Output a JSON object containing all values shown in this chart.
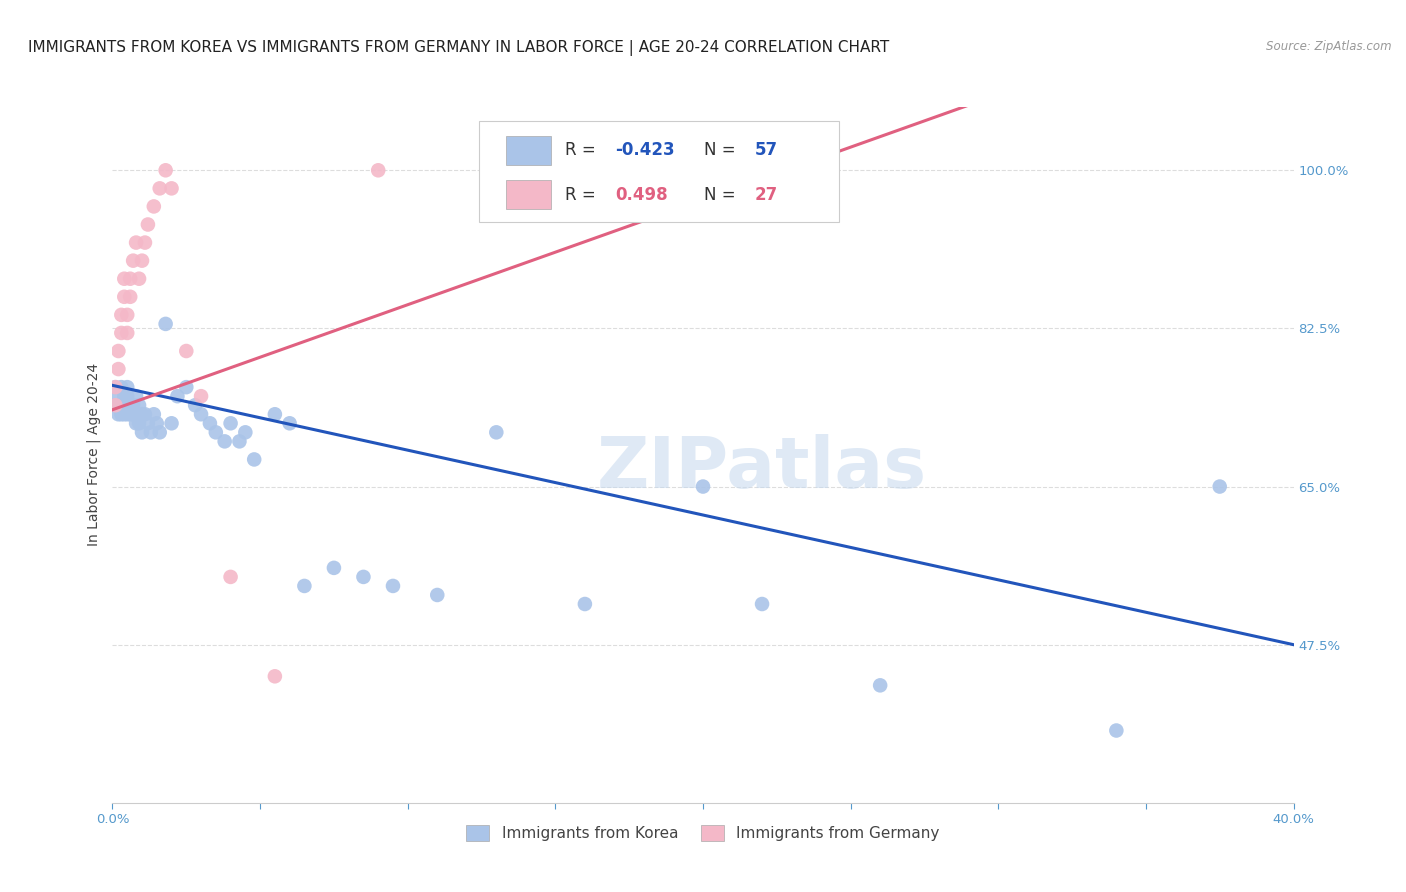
{
  "title": "IMMIGRANTS FROM KOREA VS IMMIGRANTS FROM GERMANY IN LABOR FORCE | AGE 20-24 CORRELATION CHART",
  "source": "Source: ZipAtlas.com",
  "ylabel": "In Labor Force | Age 20-24",
  "xlim": [
    0.0,
    0.4
  ],
  "ylim": [
    0.3,
    1.07
  ],
  "yticks": [
    0.475,
    0.65,
    0.825,
    1.0
  ],
  "yticklabels": [
    "47.5%",
    "65.0%",
    "82.5%",
    "100.0%"
  ],
  "background_color": "#ffffff",
  "grid_color": "#dddddd",
  "korea_color": "#aac4e8",
  "germany_color": "#f4b8c8",
  "korea_line_color": "#2255bb",
  "germany_line_color": "#e06080",
  "korea_R": -0.423,
  "korea_N": 57,
  "germany_R": 0.498,
  "germany_N": 27,
  "legend_label_korea": "Immigrants from Korea",
  "legend_label_germany": "Immigrants from Germany",
  "korea_x": [
    0.001,
    0.001,
    0.002,
    0.002,
    0.002,
    0.003,
    0.003,
    0.003,
    0.004,
    0.004,
    0.004,
    0.005,
    0.005,
    0.005,
    0.006,
    0.006,
    0.007,
    0.007,
    0.008,
    0.008,
    0.009,
    0.009,
    0.01,
    0.01,
    0.011,
    0.012,
    0.013,
    0.014,
    0.015,
    0.016,
    0.018,
    0.02,
    0.022,
    0.025,
    0.028,
    0.03,
    0.033,
    0.035,
    0.038,
    0.04,
    0.043,
    0.045,
    0.048,
    0.055,
    0.06,
    0.065,
    0.075,
    0.085,
    0.095,
    0.11,
    0.13,
    0.16,
    0.2,
    0.22,
    0.26,
    0.34,
    0.375
  ],
  "korea_y": [
    0.76,
    0.74,
    0.75,
    0.74,
    0.73,
    0.76,
    0.74,
    0.73,
    0.75,
    0.74,
    0.73,
    0.76,
    0.75,
    0.73,
    0.74,
    0.73,
    0.74,
    0.73,
    0.75,
    0.72,
    0.74,
    0.72,
    0.73,
    0.71,
    0.73,
    0.72,
    0.71,
    0.73,
    0.72,
    0.71,
    0.83,
    0.72,
    0.75,
    0.76,
    0.74,
    0.73,
    0.72,
    0.71,
    0.7,
    0.72,
    0.7,
    0.71,
    0.68,
    0.73,
    0.72,
    0.54,
    0.56,
    0.55,
    0.54,
    0.53,
    0.71,
    0.52,
    0.65,
    0.52,
    0.43,
    0.38,
    0.65
  ],
  "germany_x": [
    0.001,
    0.001,
    0.002,
    0.002,
    0.003,
    0.003,
    0.004,
    0.004,
    0.005,
    0.005,
    0.006,
    0.006,
    0.007,
    0.008,
    0.009,
    0.01,
    0.011,
    0.012,
    0.014,
    0.016,
    0.018,
    0.02,
    0.025,
    0.03,
    0.04,
    0.055,
    0.09
  ],
  "germany_y": [
    0.74,
    0.76,
    0.8,
    0.78,
    0.82,
    0.84,
    0.86,
    0.88,
    0.84,
    0.82,
    0.86,
    0.88,
    0.9,
    0.92,
    0.88,
    0.9,
    0.92,
    0.94,
    0.96,
    0.98,
    1.0,
    0.98,
    0.8,
    0.75,
    0.55,
    0.44,
    1.0
  ],
  "watermark": "ZIPatlas",
  "title_fontsize": 11,
  "axis_label_fontsize": 10,
  "tick_fontsize": 9.5
}
